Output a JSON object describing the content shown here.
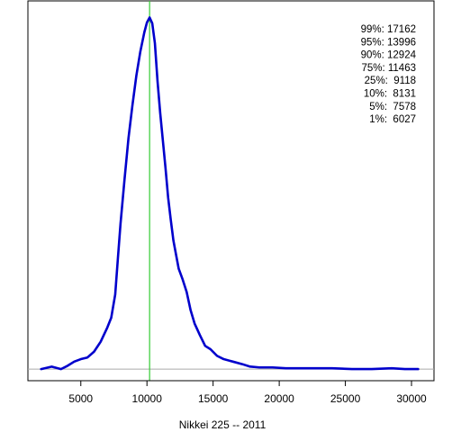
{
  "chart_data": {
    "type": "line",
    "title": "",
    "xlabel": "Nikkei 225 -- 2011",
    "ylabel": "",
    "xlim": [
      1000,
      31700
    ],
    "ylim": [
      -1.4e-05,
      0.000444
    ],
    "x_ticks": [
      5000,
      10000,
      15000,
      20000,
      25000,
      30000
    ],
    "x_tick_labels": [
      "5000",
      "10000",
      "15000",
      "20000",
      "25000",
      "30000"
    ],
    "vertical_line": {
      "x": 10200,
      "color": "#33cc33"
    },
    "baseline": {
      "y": 0,
      "color": "#aaaaaa"
    },
    "annotations": [
      "99%: 17162",
      "95%: 13996",
      "90%: 12924",
      "75%: 11463",
      "25%:  9118",
      "10%:  8131",
      " 5%:  7578",
      " 1%:  6027"
    ],
    "series": [
      {
        "color": "#0000cc",
        "x": [
          2000,
          2800,
          3500,
          4000,
          4500,
          5000,
          5500,
          6000,
          6500,
          7000,
          7300,
          7600,
          7800,
          8000,
          8300,
          8600,
          8900,
          9200,
          9500,
          9800,
          10000,
          10200,
          10400,
          10600,
          10800,
          11000,
          11200,
          11400,
          11600,
          11800,
          12000,
          12200,
          12400,
          12700,
          13000,
          13300,
          13600,
          14000,
          14400,
          14800,
          15300,
          15800,
          16500,
          17200,
          17800,
          18500,
          19500,
          20500,
          21500,
          22500,
          24000,
          25500,
          27000,
          28500,
          29500,
          30500
        ],
        "y": [
          0.0,
          3e-06,
          0.0,
          4e-06,
          9e-06,
          1.2e-05,
          1.4e-05,
          2.1e-05,
          3.3e-05,
          5e-05,
          6.2e-05,
          9e-05,
          0.000133,
          0.000175,
          0.000228,
          0.000278,
          0.000318,
          0.000354,
          0.000383,
          0.000406,
          0.000418,
          0.000424,
          0.000417,
          0.000393,
          0.000347,
          0.000309,
          0.000276,
          0.000243,
          0.000207,
          0.00018,
          0.000155,
          0.000138,
          0.000121,
          0.000108,
          9.3e-05,
          7.1e-05,
          5.5e-05,
          4.1e-05,
          2.8e-05,
          2.4e-05,
          1.6e-05,
          1.2e-05,
          9e-06,
          6e-06,
          3e-06,
          2e-06,
          2e-06,
          1e-06,
          1e-06,
          1e-06,
          1e-06,
          0.0,
          0.0,
          1e-06,
          0.0,
          0.0
        ]
      }
    ]
  }
}
